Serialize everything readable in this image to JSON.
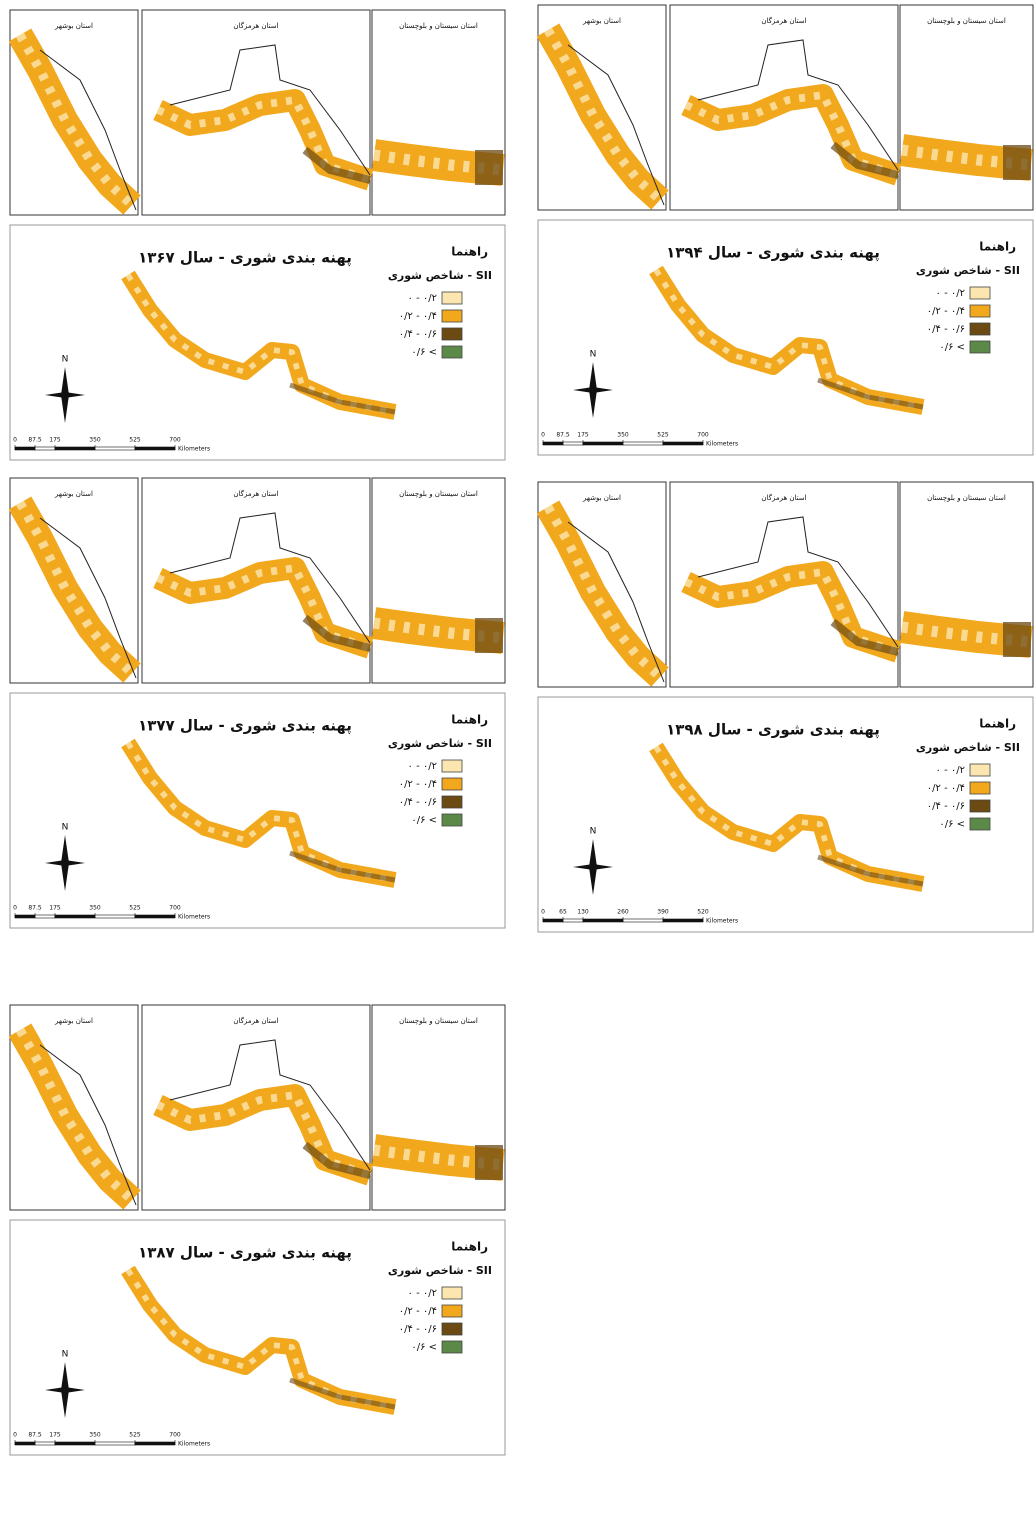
{
  "insets": [
    "استان بوشهر",
    "استان هرمزگان",
    "استان سیستان و بلوچستان"
  ],
  "legend": {
    "title": "راهنما",
    "index": "شاخص شوری - SII",
    "classes": [
      {
        "label": "۰ - ۰/۲",
        "color": "#fbe6b0"
      },
      {
        "label": "۰/۲ - ۰/۴",
        "color": "#f2a81d"
      },
      {
        "label": "۰/۴ - ۰/۶",
        "color": "#6b4a14"
      },
      {
        "label": "۰/۶ <",
        "color": "#5b8a48"
      }
    ]
  },
  "north": "N",
  "scale_unit": "Kilometers",
  "panels": [
    {
      "title": "پهنه بندی شوری - سال ۱۳۶۷",
      "scale": [
        0,
        87.5,
        175,
        350,
        525,
        700
      ]
    },
    {
      "title": "پهنه بندی شوری - سال ۱۳۹۴",
      "scale": [
        0,
        87.5,
        175,
        350,
        525,
        700
      ]
    },
    {
      "title": "پهنه بندی شوری - سال ۱۳۷۷",
      "scale": [
        0,
        87.5,
        175,
        350,
        525,
        700
      ]
    },
    {
      "title": "پهنه بندی شوری - سال ۱۳۹۸",
      "scale": [
        0,
        65,
        130,
        260,
        390,
        520
      ]
    },
    {
      "title": "پهنه بندی شوری - سال ۱۳۸۷",
      "scale": [
        0,
        87.5,
        175,
        350,
        525,
        700
      ]
    }
  ]
}
